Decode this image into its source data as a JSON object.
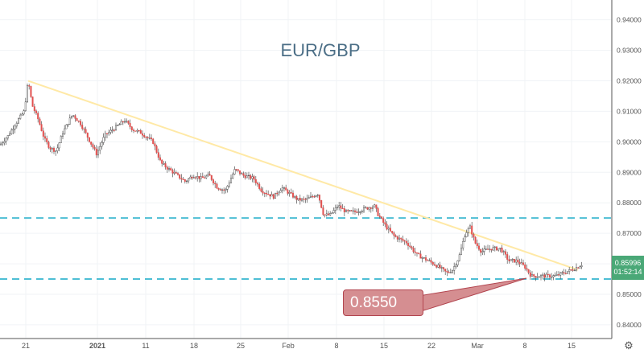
{
  "chart_data": {
    "type": "candlestick",
    "title": "EUR/GBP",
    "xlabel": "",
    "ylabel": "",
    "ylim": [
      0.8355,
      0.9465
    ],
    "grid": true,
    "x_tick_labels": [
      "21",
      "2021",
      "11",
      "18",
      "25",
      "Feb",
      "8",
      "15",
      "22",
      "Mar",
      "8",
      "15"
    ],
    "y_tick_labels": [
      "0.94000",
      "0.93000",
      "0.92000",
      "0.91000",
      "0.90000",
      "0.89000",
      "0.88000",
      "0.87000",
      "0.86000",
      "0.85000",
      "0.84000"
    ],
    "y_ticks": [
      0.94,
      0.93,
      0.92,
      0.91,
      0.9,
      0.89,
      0.88,
      0.87,
      0.86,
      0.85,
      0.84
    ],
    "last_price": "0.85996",
    "last_price_value": 0.85996,
    "countdown": "01:52:14",
    "price_path": [
      [
        0,
        0.899
      ],
      [
        10,
        0.902
      ],
      [
        22,
        0.907
      ],
      [
        30,
        0.91
      ],
      [
        35,
        0.92
      ],
      [
        40,
        0.912
      ],
      [
        48,
        0.907
      ],
      [
        55,
        0.901
      ],
      [
        62,
        0.898
      ],
      [
        70,
        0.897
      ],
      [
        78,
        0.903
      ],
      [
        90,
        0.909
      ],
      [
        100,
        0.906
      ],
      [
        110,
        0.901
      ],
      [
        120,
        0.896
      ],
      [
        130,
        0.902
      ],
      [
        140,
        0.904
      ],
      [
        155,
        0.907
      ],
      [
        165,
        0.904
      ],
      [
        175,
        0.903
      ],
      [
        190,
        0.9
      ],
      [
        200,
        0.893
      ],
      [
        210,
        0.891
      ],
      [
        220,
        0.889
      ],
      [
        230,
        0.887
      ],
      [
        240,
        0.889
      ],
      [
        250,
        0.888
      ],
      [
        260,
        0.889
      ],
      [
        270,
        0.885
      ],
      [
        280,
        0.884
      ],
      [
        292,
        0.891
      ],
      [
        302,
        0.889
      ],
      [
        315,
        0.888
      ],
      [
        325,
        0.884
      ],
      [
        340,
        0.882
      ],
      [
        350,
        0.885
      ],
      [
        360,
        0.883
      ],
      [
        370,
        0.881
      ],
      [
        380,
        0.881
      ],
      [
        395,
        0.883
      ],
      [
        402,
        0.876
      ],
      [
        410,
        0.876
      ],
      [
        420,
        0.879
      ],
      [
        430,
        0.877
      ],
      [
        440,
        0.877
      ],
      [
        452,
        0.878
      ],
      [
        465,
        0.879
      ],
      [
        470,
        0.876
      ],
      [
        480,
        0.872
      ],
      [
        490,
        0.869
      ],
      [
        505,
        0.867
      ],
      [
        518,
        0.863
      ],
      [
        532,
        0.861
      ],
      [
        545,
        0.859
      ],
      [
        555,
        0.857
      ],
      [
        562,
        0.858
      ],
      [
        570,
        0.862
      ],
      [
        578,
        0.87
      ],
      [
        584,
        0.872
      ],
      [
        590,
        0.867
      ],
      [
        598,
        0.864
      ],
      [
        610,
        0.865
      ],
      [
        622,
        0.865
      ],
      [
        632,
        0.861
      ],
      [
        642,
        0.861
      ],
      [
        652,
        0.859
      ],
      [
        660,
        0.856
      ],
      [
        670,
        0.856
      ],
      [
        680,
        0.856
      ],
      [
        690,
        0.856
      ],
      [
        700,
        0.857
      ],
      [
        710,
        0.858
      ],
      [
        718,
        0.859
      ],
      [
        724,
        0.86
      ]
    ],
    "annotations": {
      "trendline": {
        "from": [
          35,
          0.92
        ],
        "to": [
          718,
          0.858
        ],
        "color": "#ffe9a6"
      },
      "resistance": {
        "value": 0.875,
        "color": "#4dbed4"
      },
      "support": {
        "value": 0.855,
        "color": "#4dbed4"
      },
      "callout_label": "0.8550",
      "callout_value": 0.855
    }
  },
  "colors": {
    "up": "#26a69a",
    "down": "#e2504f",
    "body_up": "#ffffff",
    "wick": "#555555",
    "price_label": "#4aa877",
    "callout_fill": "#d58e91",
    "callout_border": "#b2454f",
    "title": "#4b6e86"
  },
  "icons": {
    "settings": "gear-icon"
  }
}
